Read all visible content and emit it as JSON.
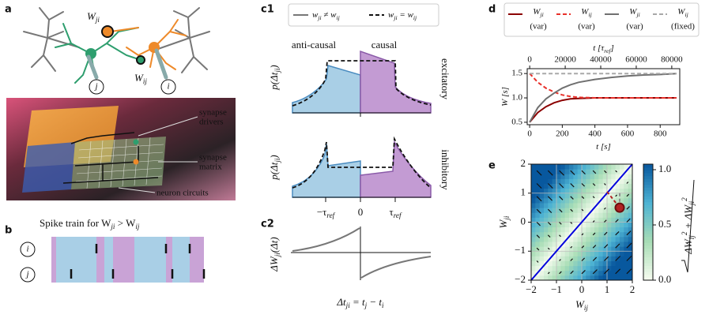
{
  "panel_labels": {
    "a": "a",
    "b": "b",
    "c1": "c1",
    "c2": "c2",
    "d": "d",
    "e": "e"
  },
  "a": {
    "main_weight": [
      "W",
      {
        "sub": "ji"
      }
    ],
    "secondary_weight": [
      "W",
      {
        "sub": "ij"
      }
    ],
    "neuron_j": "j",
    "neuron_i": "i",
    "chip_labels": [
      [
        "synapse",
        "drivers"
      ],
      [
        "synapse",
        "matrix"
      ],
      [
        "neuron circuits"
      ]
    ]
  },
  "b": {
    "title": [
      "Spike train for ",
      "W",
      {
        "sub": "ji"
      },
      " > ",
      "W",
      {
        "sub": "ij"
      }
    ],
    "neuron_i": "i",
    "neuron_j": "j"
  },
  "c1": {
    "legend": [
      [
        "w",
        {
          "sub": "ji"
        },
        " ≠ ",
        "w",
        {
          "sub": "ij"
        }
      ],
      [
        "w",
        {
          "sub": "ji"
        },
        " = ",
        "w",
        {
          "sub": "ij"
        }
      ]
    ],
    "anticausal": "anti-causal",
    "causal": "causal",
    "ylabel": [
      "p(Δt",
      {
        "sub": "ji"
      },
      ")"
    ],
    "excitatory": "excitatory",
    "inhibitory": "inhibitory",
    "xticks": [
      [
        "−τ",
        {
          "sub": "ref"
        }
      ],
      [
        "0"
      ],
      [
        "τ",
        {
          "sub": "ref"
        }
      ]
    ]
  },
  "c2": {
    "ylabel": [
      "ΔW",
      {
        "sub": "ji"
      },
      "(Δt)"
    ],
    "xlabel": [
      "Δt",
      {
        "sub": "ji"
      },
      " = t",
      {
        "sub": "j"
      },
      " − t",
      {
        "sub": "i"
      }
    ]
  },
  "chart_data": [
    {
      "type": "line",
      "x": [
        0,
        50,
        100,
        150,
        200,
        250,
        300,
        400,
        500,
        600,
        700,
        800,
        900
      ],
      "series": [
        {
          "name": [
            "W",
            {
              "sub": "ji"
            }
          ],
          "qualifier": "(var)",
          "color": "#8b0000",
          "dashed": false,
          "values": [
            0.5,
            0.7,
            0.82,
            0.9,
            0.95,
            0.98,
            0.99,
            1.0,
            1.0,
            1.0,
            1.0,
            1.0,
            1.0
          ]
        },
        {
          "name": [
            "W",
            {
              "sub": "ij"
            }
          ],
          "qualifier": "(var)",
          "color": "#e8302a",
          "dashed": true,
          "values": [
            1.5,
            1.32,
            1.2,
            1.12,
            1.06,
            1.03,
            1.01,
            1.0,
            1.0,
            1.0,
            1.0,
            1.0,
            1.0
          ]
        },
        {
          "name": [
            "W",
            {
              "sub": "ji"
            }
          ],
          "qualifier": "(var)",
          "color": "#707070",
          "dashed": false,
          "values": [
            0.5,
            0.8,
            0.98,
            1.1,
            1.2,
            1.27,
            1.32,
            1.38,
            1.42,
            1.45,
            1.47,
            1.48,
            1.5
          ]
        },
        {
          "name": [
            "W",
            {
              "sub": "ij"
            }
          ],
          "qualifier": "(fixed)",
          "color": "#a8a8a8",
          "dashed": true,
          "values": [
            1.5,
            1.5,
            1.5,
            1.5,
            1.5,
            1.5,
            1.5,
            1.5,
            1.5,
            1.5,
            1.5,
            1.5,
            1.5
          ]
        }
      ],
      "xlim": [
        -15,
        920
      ],
      "xticks": [
        0,
        200,
        400,
        600,
        800
      ],
      "xlabel": [
        "t [s]"
      ],
      "x2lim": [
        -1400,
        84500
      ],
      "x2ticks": [
        0,
        20000,
        40000,
        60000,
        80000
      ],
      "x2label": [
        "t [τ",
        {
          "sub": "ref"
        },
        "]"
      ],
      "ylim": [
        0.45,
        1.6
      ],
      "yticks": [
        0.5,
        {
          "value": 1,
          "label": "1.0"
        },
        1.5
      ],
      "ylabel": [
        "W [s]"
      ]
    },
    {
      "type": "field",
      "xlim": [
        -2,
        2
      ],
      "ylim": [
        -2,
        2
      ],
      "xticks": [
        {
          "value": -2,
          "label": "−2"
        },
        {
          "value": -1,
          "label": "−1"
        },
        0,
        1,
        2
      ],
      "yticks": [
        {
          "value": -2,
          "label": "−2"
        },
        {
          "value": -1,
          "label": "−1"
        },
        0,
        1,
        2
      ],
      "grid": true,
      "xlabel": [
        "W",
        {
          "sub": "ij"
        }
      ],
      "ylabel": [
        "W",
        {
          "sub": "ji"
        }
      ],
      "cmap": [
        "#f7fcf0",
        "#a8ddb5",
        "#4eb3d3",
        "#08589e"
      ],
      "clim": [
        0,
        1.05
      ],
      "cticks": [
        {
          "value": 0,
          "label": "0.0"
        },
        0.5,
        {
          "value": 1,
          "label": "1.0"
        }
      ],
      "clabel": [
        "ΔW",
        {
          "sub": "ij"
        },
        {
          "sup": "2"
        },
        " + ΔW",
        {
          "sub": "ji"
        },
        {
          "sup": "2"
        }
      ],
      "diagonal_color": "#0000dd",
      "point": [
        1.5,
        0.5
      ],
      "point_color": "#b22222",
      "trajectories": [
        {
          "color": "#b22222",
          "from": [
            1.0,
            1.05
          ]
        },
        {
          "color": "#909090",
          "from": [
            1.5,
            1.0
          ]
        }
      ]
    }
  ]
}
